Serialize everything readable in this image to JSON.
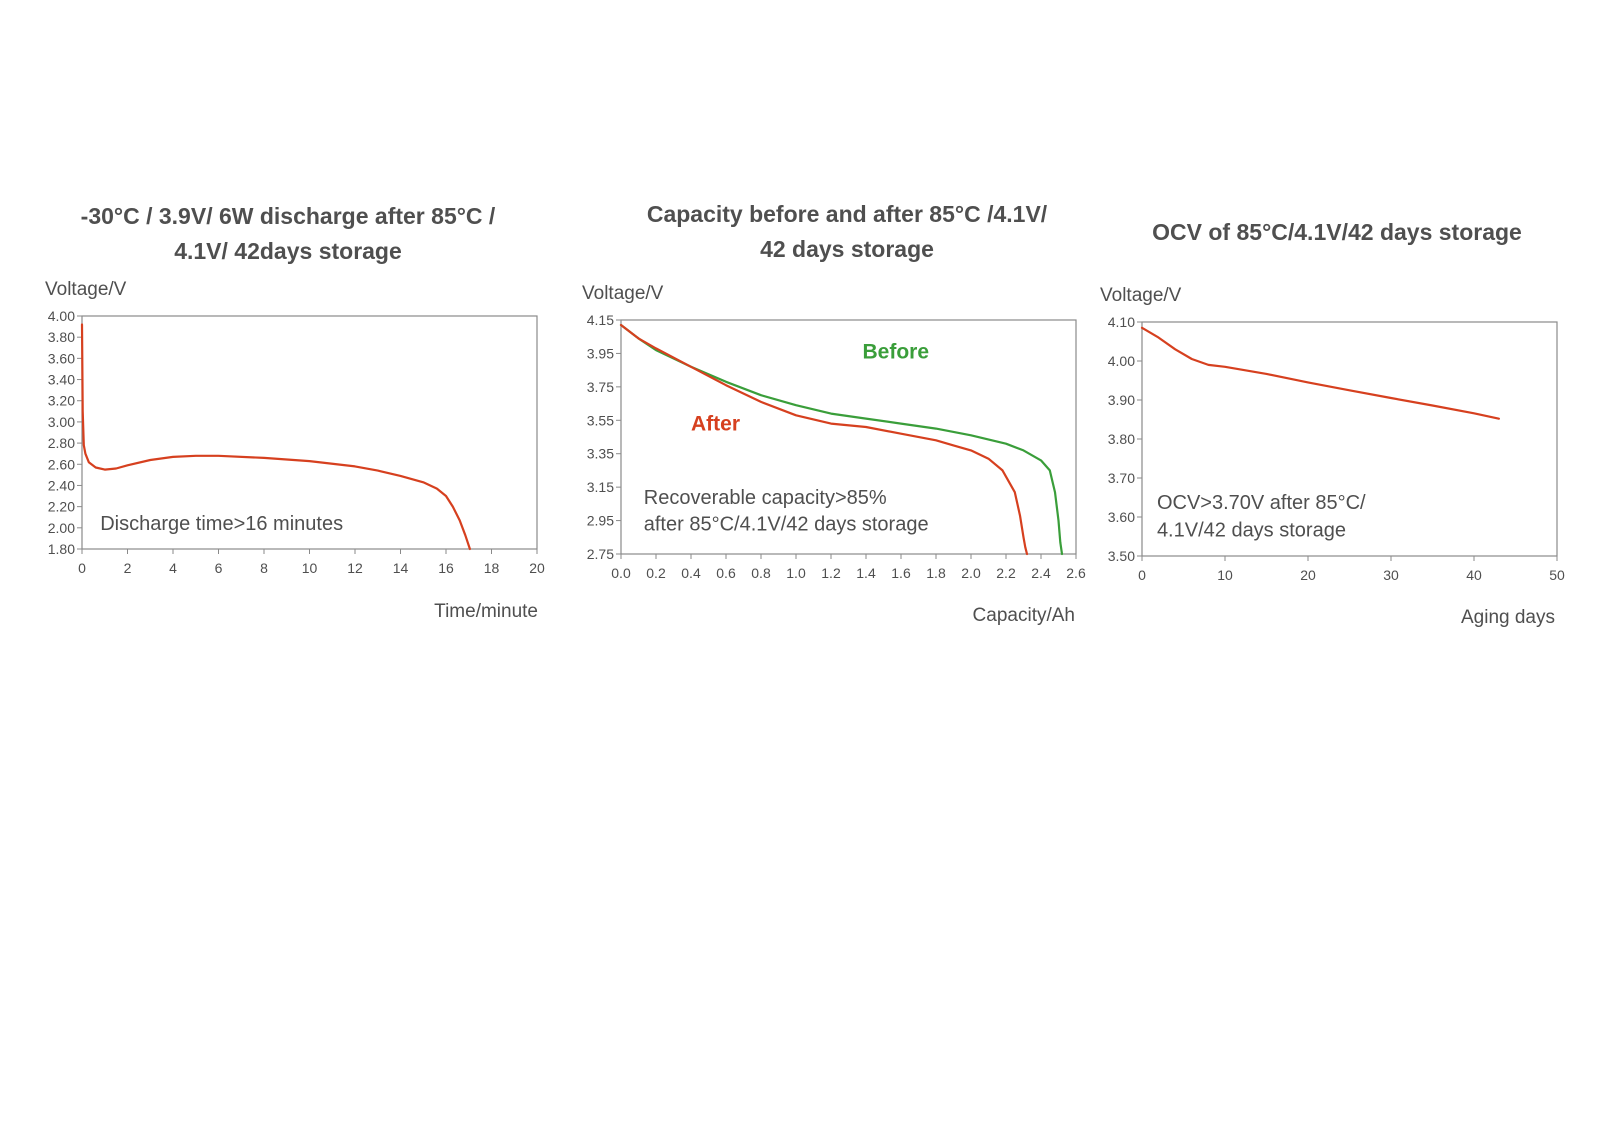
{
  "colors": {
    "red": "#d6401f",
    "green": "#3a9e3a",
    "text": "#4f4f4f",
    "frame": "#8a8a8a"
  },
  "chart_data": [
    {
      "type": "line",
      "title_lines": [
        "-30°C / 3.9V/ 6W discharge after 85°C /",
        "4.1V/ 42days storage"
      ],
      "ylabel": "Voltage/V",
      "xlabel": "Time/minute",
      "xlim": [
        0,
        20
      ],
      "ylim": [
        1.8,
        4.0
      ],
      "xticks": [
        0,
        2,
        4,
        6,
        8,
        10,
        12,
        14,
        16,
        18,
        20
      ],
      "yticks": [
        4.0,
        3.8,
        3.6,
        3.4,
        3.2,
        3.0,
        2.8,
        2.6,
        2.4,
        2.2,
        2.0,
        1.8
      ],
      "xtick_labels": [
        "0",
        "2",
        "4",
        "6",
        "8",
        "10",
        "12",
        "14",
        "16",
        "18",
        "20"
      ],
      "ytick_labels": [
        "4.00",
        "3.80",
        "3.60",
        "3.40",
        "3.20",
        "3.00",
        "2.80",
        "2.60",
        "2.40",
        "2.20",
        "2.00",
        "1.80"
      ],
      "annotations": [
        {
          "text": "Discharge time>16 minutes",
          "x": 0.8,
          "y": 1.98
        }
      ],
      "series": [
        {
          "name": "Discharge",
          "color": "#d6401f",
          "x": [
            0,
            0.03,
            0.08,
            0.15,
            0.3,
            0.6,
            1.0,
            1.5,
            2.0,
            3.0,
            4.0,
            5.0,
            6.0,
            8.0,
            10.0,
            12.0,
            13.0,
            14.0,
            15.0,
            15.6,
            16.0,
            16.3,
            16.6,
            16.85,
            17.05
          ],
          "y": [
            3.92,
            3.1,
            2.78,
            2.7,
            2.62,
            2.57,
            2.55,
            2.56,
            2.59,
            2.64,
            2.67,
            2.68,
            2.68,
            2.66,
            2.63,
            2.58,
            2.54,
            2.49,
            2.43,
            2.37,
            2.3,
            2.2,
            2.07,
            1.93,
            1.8
          ]
        }
      ]
    },
    {
      "type": "line",
      "title_lines": [
        "Capacity before and after 85°C /4.1V/",
        "42 days storage"
      ],
      "ylabel": "Voltage/V",
      "xlabel": "Capacity/Ah",
      "xlim": [
        0,
        2.6
      ],
      "ylim": [
        2.75,
        4.15
      ],
      "xticks": [
        0,
        0.2,
        0.4,
        0.6,
        0.8,
        1.0,
        1.2,
        1.4,
        1.6,
        1.8,
        2.0,
        2.2,
        2.4,
        2.6
      ],
      "yticks": [
        4.15,
        3.95,
        3.75,
        3.55,
        3.35,
        3.15,
        2.95,
        2.75
      ],
      "xtick_labels": [
        "0.0",
        "0.2",
        "0.4",
        "0.6",
        "0.8",
        "1.0",
        "1.2",
        "1.4",
        "1.6",
        "1.8",
        "2.0",
        "2.2",
        "2.4",
        "2.6"
      ],
      "ytick_labels": [
        "4.15",
        "3.95",
        "3.75",
        "3.55",
        "3.35",
        "3.15",
        "2.95",
        "2.75"
      ],
      "annotations": [
        {
          "text": "Recoverable  capacity>85%",
          "x": 0.13,
          "y": 3.05
        },
        {
          "text": "after 85°C/4.1V/42 days storage",
          "x": 0.13,
          "y": 2.89
        }
      ],
      "series": [
        {
          "name": "Before",
          "color": "#3a9e3a",
          "label": {
            "text": "Before",
            "x": 1.38,
            "y": 3.92
          },
          "x": [
            0,
            0.1,
            0.2,
            0.4,
            0.6,
            0.8,
            1.0,
            1.2,
            1.4,
            1.6,
            1.8,
            2.0,
            2.2,
            2.3,
            2.4,
            2.45,
            2.48,
            2.5,
            2.51,
            2.52
          ],
          "y": [
            4.12,
            4.04,
            3.97,
            3.87,
            3.78,
            3.7,
            3.64,
            3.59,
            3.56,
            3.53,
            3.5,
            3.46,
            3.41,
            3.37,
            3.31,
            3.25,
            3.12,
            2.95,
            2.82,
            2.75
          ]
        },
        {
          "name": "After",
          "color": "#d6401f",
          "label": {
            "text": "After",
            "x": 0.4,
            "y": 3.49
          },
          "x": [
            0,
            0.1,
            0.2,
            0.4,
            0.6,
            0.8,
            1.0,
            1.2,
            1.4,
            1.6,
            1.8,
            1.9,
            2.0,
            2.1,
            2.18,
            2.25,
            2.28,
            2.3,
            2.31,
            2.32
          ],
          "y": [
            4.12,
            4.04,
            3.98,
            3.87,
            3.76,
            3.66,
            3.58,
            3.53,
            3.51,
            3.47,
            3.43,
            3.4,
            3.37,
            3.32,
            3.25,
            3.12,
            2.98,
            2.85,
            2.79,
            2.75
          ]
        }
      ]
    },
    {
      "type": "line",
      "title_lines": [
        "OCV of  85°C/4.1V/42 days storage"
      ],
      "ylabel": "Voltage/V",
      "xlabel": "Aging days",
      "xlim": [
        0,
        50
      ],
      "ylim": [
        3.5,
        4.1
      ],
      "xticks": [
        0,
        10,
        20,
        30,
        40,
        50
      ],
      "yticks": [
        4.1,
        4.0,
        3.9,
        3.8,
        3.7,
        3.6,
        3.5
      ],
      "xtick_labels": [
        "0",
        "10",
        "20",
        "30",
        "40",
        "50"
      ],
      "ytick_labels": [
        "4.10",
        "4.00",
        "3.90",
        "3.80",
        "3.70",
        "3.60",
        "3.50"
      ],
      "annotations": [
        {
          "text": "OCV>3.70V after 85°C/",
          "x": 1.8,
          "y": 3.62
        },
        {
          "text": "4.1V/42 days storage",
          "x": 1.8,
          "y": 3.55
        }
      ],
      "series": [
        {
          "name": "OCV",
          "color": "#d6401f",
          "x": [
            0,
            2,
            4,
            6,
            8,
            10,
            15,
            20,
            25,
            30,
            35,
            40,
            43
          ],
          "y": [
            4.085,
            4.06,
            4.03,
            4.005,
            3.99,
            3.985,
            3.967,
            3.945,
            3.925,
            3.905,
            3.886,
            3.866,
            3.852
          ]
        }
      ]
    }
  ]
}
